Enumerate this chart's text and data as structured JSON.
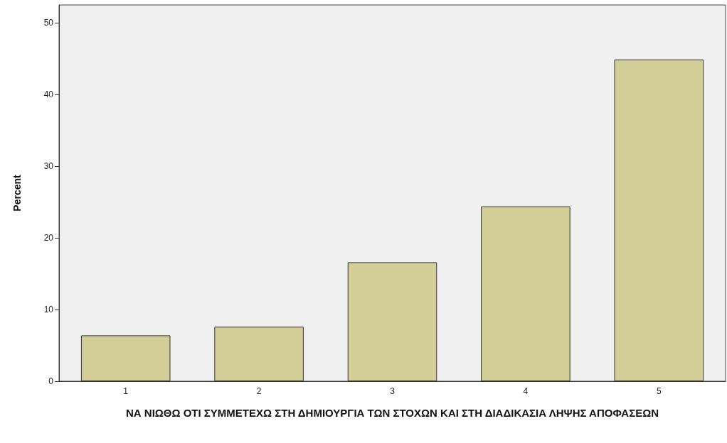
{
  "chart_data": {
    "type": "bar",
    "xlabel": "ΝΑ ΝΙΩΘΩ ΟΤΙ ΣΥΜΜΕΤΕΧΩ ΣΤΗ ΔΗΜΙΟΥΡΓΙΑ ΤΩΝ ΣΤΟΧΩΝ ΚΑΙ ΣΤΗ ΔΙΑΔΙΚΑΣΙΑ ΛΗΨΗΣ ΑΠΟΦΑΣΕΩΝ",
    "ylabel": "Percent",
    "categories": [
      "1",
      "2",
      "3",
      "4",
      "5"
    ],
    "values": [
      6.4,
      7.6,
      16.6,
      24.4,
      44.9
    ],
    "color": "#d3cd98",
    "ylim": [
      0,
      52.5
    ],
    "yticks": [
      0,
      10,
      20,
      30,
      40,
      50
    ],
    "grid": false
  }
}
